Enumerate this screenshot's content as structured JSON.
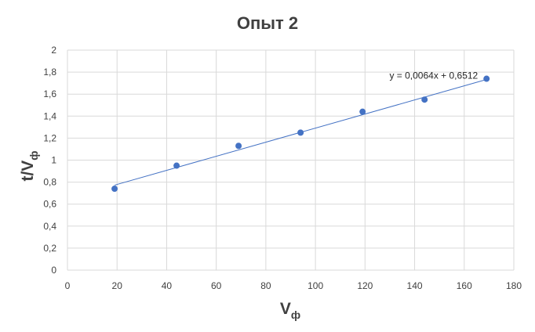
{
  "chart_data": {
    "type": "scatter",
    "title": "Опыт 2",
    "xlabel": {
      "main": "V",
      "sub": "ф"
    },
    "ylabel": {
      "main": "t/V",
      "sub": "ф"
    },
    "xlim": [
      0,
      180
    ],
    "ylim": [
      0,
      2
    ],
    "x_ticks": [
      "0",
      "20",
      "40",
      "60",
      "80",
      "100",
      "120",
      "140",
      "160",
      "180"
    ],
    "y_ticks": [
      "0",
      "0,2",
      "0,4",
      "0,6",
      "0,8",
      "1",
      "1,2",
      "1,4",
      "1,6",
      "1,8",
      "2"
    ],
    "grid": "vertical-and-horizontal",
    "series": [
      {
        "color": "#4472c4",
        "points": [
          {
            "x": 19,
            "y": 0.74
          },
          {
            "x": 44,
            "y": 0.95
          },
          {
            "x": 69,
            "y": 1.13
          },
          {
            "x": 94,
            "y": 1.25
          },
          {
            "x": 119,
            "y": 1.44
          },
          {
            "x": 144,
            "y": 1.55
          },
          {
            "x": 169,
            "y": 1.74
          }
        ]
      }
    ],
    "trendline": {
      "type": "linear",
      "slope": 0.0064,
      "intercept": 0.6512,
      "x_range": [
        19,
        169
      ],
      "equation_label": "y = 0,0064x + 0,6512"
    }
  }
}
